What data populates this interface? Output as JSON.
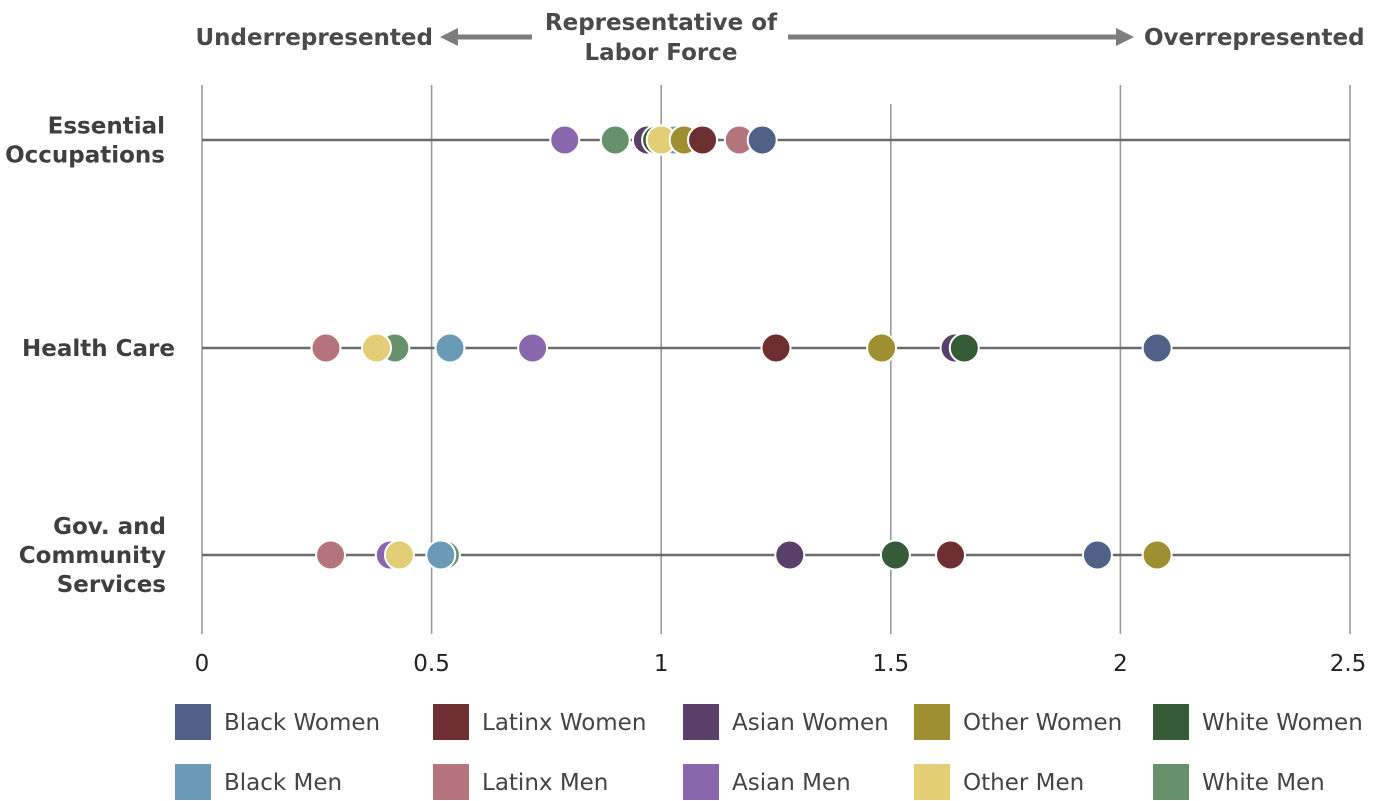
{
  "chart_data": {
    "type": "scatter",
    "header": {
      "left": "Underrepresented",
      "center": [
        "Representative of",
        "Labor Force"
      ],
      "right": "Overrepresented"
    },
    "xlim": [
      0,
      2.5
    ],
    "xticks": [
      0,
      0.5,
      1,
      1.5,
      2,
      2.5
    ],
    "xtick_labels": [
      "0",
      "0.5",
      "1",
      "1.5",
      "2",
      "2.5"
    ],
    "grid": true,
    "legend_position": "bottom",
    "categories": [
      {
        "lines": [
          "Essential",
          "Occupations"
        ]
      },
      {
        "lines": [
          "Health Care"
        ]
      },
      {
        "lines": [
          "Gov. and",
          "Community",
          "Services"
        ]
      }
    ],
    "series": [
      {
        "name": "Black Women",
        "color": "#4f6187",
        "values": [
          1.22,
          2.08,
          1.95
        ]
      },
      {
        "name": "Latinx Women",
        "color": "#6e2f33",
        "values": [
          1.09,
          1.25,
          1.63
        ]
      },
      {
        "name": "Asian Women",
        "color": "#5a3f6b",
        "values": [
          0.97,
          1.64,
          1.28
        ]
      },
      {
        "name": "Other Women",
        "color": "#9e9030",
        "values": [
          1.05,
          1.48,
          2.08
        ]
      },
      {
        "name": "White Women",
        "color": "#355c36",
        "values": [
          0.99,
          1.66,
          1.51
        ]
      },
      {
        "name": "Black Men",
        "color": "#6a9ab5",
        "values": [
          1.03,
          0.54,
          0.52
        ]
      },
      {
        "name": "Latinx Men",
        "color": "#b5747b",
        "values": [
          1.17,
          0.27,
          0.28
        ]
      },
      {
        "name": "Asian Men",
        "color": "#8a67ad",
        "values": [
          0.79,
          0.72,
          0.41
        ]
      },
      {
        "name": "Other Men",
        "color": "#e3cd75",
        "values": [
          1.0,
          0.38,
          0.43
        ]
      },
      {
        "name": "White Men",
        "color": "#66916a",
        "values": [
          0.9,
          0.42,
          0.53
        ]
      }
    ],
    "draw_order": [
      "Asian Men",
      "White Men",
      "Asian Women",
      "White Women",
      "Black Men",
      "Other Men",
      "Other Women",
      "Latinx Women",
      "Latinx Men",
      "Black Women"
    ]
  }
}
